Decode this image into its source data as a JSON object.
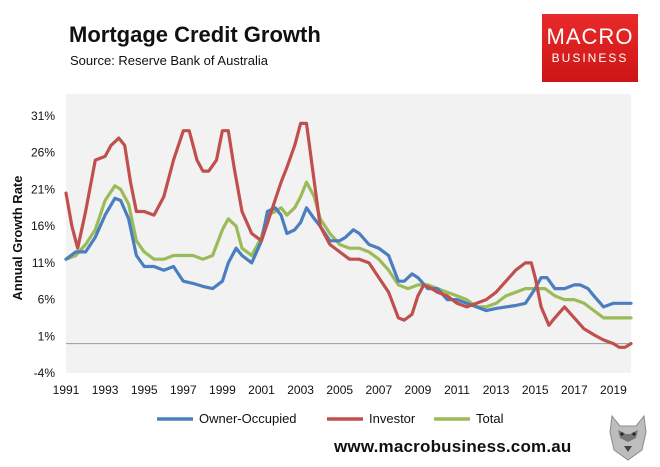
{
  "header": {
    "title": "Mortgage Credit Growth",
    "subtitle": "Source: Reserve Bank of Australia"
  },
  "logo": {
    "line1": "MACRO",
    "line2": "BUSINESS"
  },
  "footer": {
    "url": "www.macrobusiness.com.au"
  },
  "colors": {
    "owner": "#4a7ebf",
    "investor": "#c0504d",
    "total": "#9bbb59",
    "plot_bg": "#f2f2f2",
    "logo_red": "#dd2222"
  },
  "chart_data": {
    "type": "line",
    "title": "Mortgage Credit Growth",
    "ylabel": "Annual Growth Rate",
    "xlabel": "",
    "xlim": [
      1991,
      2019.9
    ],
    "ylim": [
      -4,
      34
    ],
    "y_ticks": [
      31,
      26,
      21,
      16,
      11,
      6,
      1,
      -4
    ],
    "y_tick_labels": [
      "31%",
      "26%",
      "21%",
      "16%",
      "11%",
      "6%",
      "1%",
      "-4%"
    ],
    "x_ticks": [
      1991,
      1993,
      1995,
      1997,
      1999,
      2001,
      2003,
      2005,
      2007,
      2009,
      2011,
      2013,
      2015,
      2017,
      2019
    ],
    "x_tick_labels": [
      "1991",
      "1993",
      "1995",
      "1997",
      "1999",
      "2001",
      "2003",
      "2005",
      "2007",
      "2009",
      "2011",
      "2013",
      "2015",
      "2017",
      "2019"
    ],
    "legend": "bottom",
    "series": [
      {
        "name": "Owner-Occupied",
        "x": [
          1991,
          1991.5,
          1992,
          1992.5,
          1993,
          1993.5,
          1993.8,
          1994.2,
          1994.6,
          1995,
          1995.5,
          1996,
          1996.5,
          1997,
          1997.5,
          1998,
          1998.5,
          1999,
          1999.3,
          1999.7,
          2000,
          2000.5,
          2001,
          2001.3,
          2001.7,
          2002,
          2002.3,
          2002.7,
          2003,
          2003.3,
          2003.7,
          2004,
          2004.5,
          2005,
          2005.3,
          2005.7,
          2006,
          2006.5,
          2007,
          2007.5,
          2008,
          2008.3,
          2008.7,
          2009,
          2009.5,
          2010,
          2010.5,
          2011,
          2011.5,
          2012,
          2012.5,
          2013,
          2013.5,
          2014,
          2014.5,
          2015,
          2015.3,
          2015.6,
          2016,
          2016.5,
          2017,
          2017.3,
          2017.7,
          2018,
          2018.5,
          2019,
          2019.5,
          2019.9
        ],
        "values": [
          11.5,
          12.5,
          12.5,
          14.5,
          17.5,
          19.8,
          19.5,
          17,
          12,
          10.5,
          10.5,
          10,
          10.5,
          8.5,
          8.2,
          7.8,
          7.5,
          8.5,
          11,
          13,
          12,
          11,
          14,
          18,
          18.5,
          17.5,
          15,
          15.5,
          16.5,
          18.5,
          17,
          16,
          14,
          14,
          14.5,
          15.5,
          15,
          13.5,
          13,
          12,
          8.5,
          8.5,
          9.5,
          9,
          7.5,
          7.5,
          6,
          6,
          5.5,
          5,
          4.5,
          4.8,
          5,
          5.2,
          5.5,
          7.5,
          9,
          9,
          7.5,
          7.5,
          8,
          8,
          7.5,
          6.5,
          5,
          5.5,
          5.5,
          5.5
        ]
      },
      {
        "name": "Investor",
        "x": [
          1991,
          1991.3,
          1991.6,
          1992,
          1992.5,
          1993,
          1993.3,
          1993.7,
          1994,
          1994.3,
          1994.6,
          1995,
          1995.5,
          1996,
          1996.5,
          1997,
          1997.3,
          1997.7,
          1998,
          1998.3,
          1998.7,
          1999,
          1999.3,
          1999.6,
          2000,
          2000.5,
          2001,
          2001.5,
          2002,
          2002.3,
          2002.7,
          2003,
          2003.3,
          2003.7,
          2004,
          2004.5,
          2005,
          2005.5,
          2006,
          2006.5,
          2007,
          2007.5,
          2008,
          2008.3,
          2008.7,
          2009,
          2009.3,
          2009.7,
          2010,
          2010.5,
          2011,
          2011.5,
          2012,
          2012.5,
          2013,
          2013.5,
          2014,
          2014.5,
          2014.8,
          2015,
          2015.3,
          2015.7,
          2016,
          2016.5,
          2017,
          2017.5,
          2018,
          2018.5,
          2019,
          2019.3,
          2019.6,
          2019.9
        ],
        "values": [
          20.5,
          16,
          13,
          18,
          25,
          25.5,
          27,
          28,
          27,
          22,
          18,
          18,
          17.5,
          20,
          25,
          29,
          29,
          25,
          23.5,
          23.5,
          25,
          29,
          29,
          24,
          18,
          15,
          14,
          18,
          22,
          24,
          27,
          30,
          30,
          22,
          16,
          13.5,
          12.5,
          11.5,
          11.5,
          11,
          9,
          7,
          3.5,
          3.2,
          4,
          6.5,
          8,
          7.5,
          7,
          6.5,
          5.5,
          5,
          5.5,
          6,
          7,
          8.5,
          10,
          11,
          11,
          9,
          5,
          2.5,
          3.5,
          5,
          3.5,
          2,
          1.2,
          0.5,
          0,
          -0.5,
          -0.5,
          0
        ]
      },
      {
        "name": "Total",
        "x": [
          1991,
          1991.5,
          1992,
          1992.5,
          1993,
          1993.5,
          1993.8,
          1994.2,
          1994.6,
          1995,
          1995.5,
          1996,
          1996.5,
          1997,
          1997.5,
          1998,
          1998.5,
          1999,
          1999.3,
          1999.7,
          2000,
          2000.5,
          2001,
          2001.3,
          2001.7,
          2002,
          2002.3,
          2002.7,
          2003,
          2003.3,
          2003.7,
          2004,
          2004.5,
          2005,
          2005.5,
          2006,
          2006.5,
          2007,
          2007.5,
          2008,
          2008.5,
          2009,
          2009.5,
          2010,
          2010.5,
          2011,
          2011.5,
          2012,
          2012.5,
          2013,
          2013.5,
          2014,
          2014.5,
          2015,
          2015.5,
          2016,
          2016.5,
          2017,
          2017.5,
          2018,
          2018.5,
          2019,
          2019.5,
          2019.9
        ],
        "values": [
          11.5,
          12,
          13.5,
          15.5,
          19.5,
          21.5,
          21,
          19,
          14,
          12.5,
          11.5,
          11.5,
          12,
          12,
          12,
          11.5,
          12,
          15.5,
          17,
          16,
          13,
          12,
          14.5,
          17.5,
          18,
          18.5,
          17.5,
          18.5,
          20,
          22,
          20,
          17,
          15,
          13.5,
          13,
          13,
          12.5,
          11.5,
          10,
          8,
          7.5,
          8,
          8,
          7.5,
          7,
          6.5,
          6,
          5,
          5,
          5.5,
          6.5,
          7,
          7.5,
          7.5,
          7.5,
          6.5,
          6,
          6,
          5.5,
          4.5,
          3.5,
          3.5,
          3.5,
          3.5
        ]
      }
    ]
  }
}
